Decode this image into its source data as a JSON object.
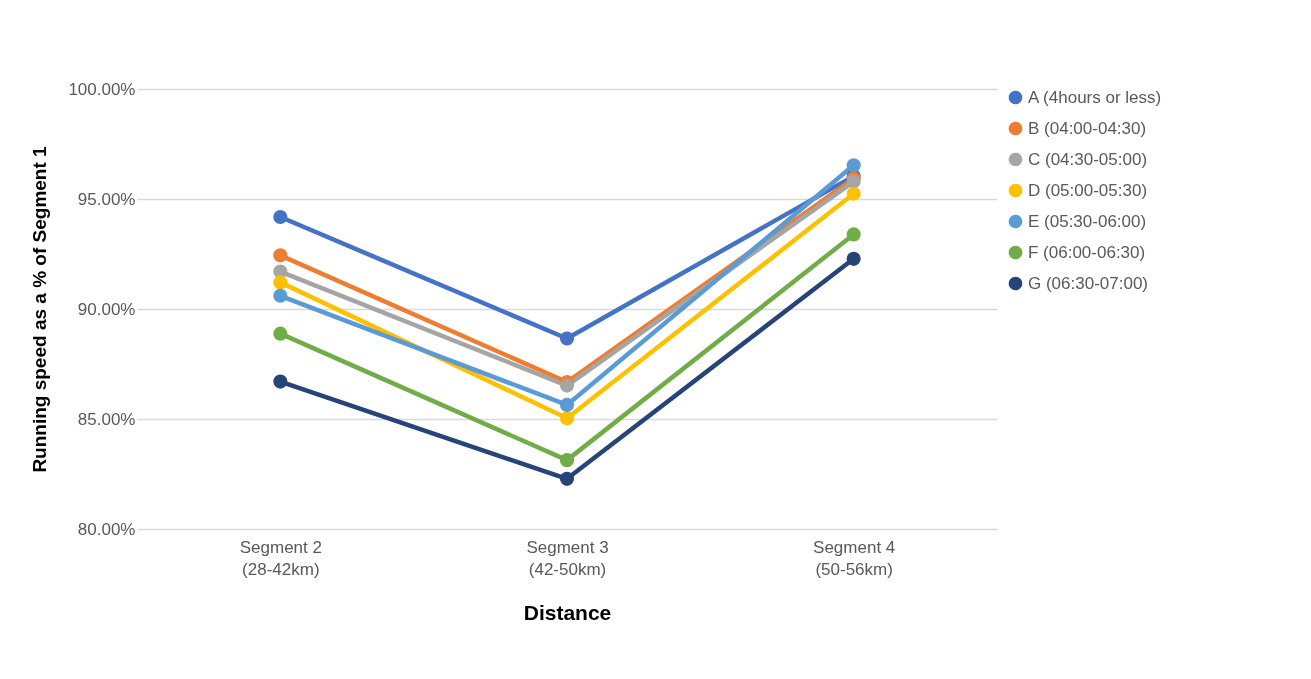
{
  "chart_data": {
    "type": "line",
    "xlabel": "Distance",
    "ylabel": "Running speed as a % of Segment 1",
    "categories": [
      "Segment 2\n(28-42km)",
      "Segment 3\n(42-50km)",
      "Segment 4\n(50-56km)"
    ],
    "series": [
      {
        "name": "A (4hours or less)",
        "color": "#4472c4",
        "values": [
          94.18,
          88.66,
          96.04
        ]
      },
      {
        "name": "B (04:00-04:30)",
        "color": "#ed7d31",
        "values": [
          92.44,
          86.68,
          95.93
        ]
      },
      {
        "name": "C (04:30-05:00)",
        "color": "#a5a5a5",
        "values": [
          91.7,
          86.52,
          95.79
        ]
      },
      {
        "name": "D (05:00-05:30)",
        "color": "#ffc000",
        "values": [
          91.21,
          85.03,
          95.24
        ]
      },
      {
        "name": "E (05:30-06:00)",
        "color": "#5b9bd5",
        "values": [
          90.6,
          85.64,
          96.53
        ]
      },
      {
        "name": "F (06:00-06:30)",
        "color": "#70ad47",
        "values": [
          88.88,
          83.13,
          93.39
        ]
      },
      {
        "name": "G (06:30-07:00)",
        "color": "#264478",
        "values": [
          86.7,
          82.28,
          92.28
        ]
      }
    ],
    "ylim": [
      80,
      100
    ],
    "yticks": [
      {
        "value": 80,
        "label": "80.00%"
      },
      {
        "value": 85,
        "label": "85.00%"
      },
      {
        "value": 90,
        "label": "90.00%"
      },
      {
        "value": 95,
        "label": "95.00%"
      },
      {
        "value": 100,
        "label": "100.00%"
      }
    ],
    "grid": "y",
    "legend": "right",
    "marker": "circle",
    "line_style": "solid"
  }
}
